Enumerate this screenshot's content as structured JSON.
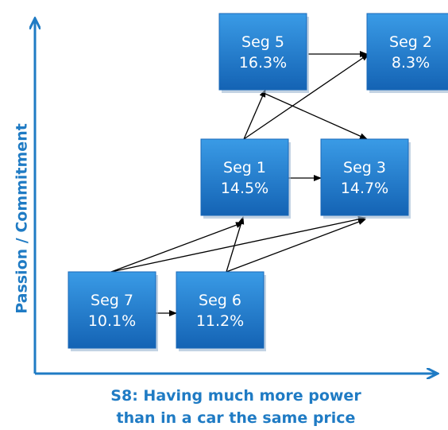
{
  "axes": {
    "y_label": "Passion / Commitment",
    "x_label": [
      "S8: Having much more power",
      "than in a car the same price"
    ]
  },
  "nodes": [
    {
      "label": "Seg 5",
      "share": "16.3%"
    },
    {
      "label": "Seg 2",
      "share": "8.3%"
    },
    {
      "label": "Seg 1",
      "share": "14.5%"
    },
    {
      "label": "Seg 3",
      "share": "14.7%"
    },
    {
      "label": "Seg 7",
      "share": "10.1%"
    },
    {
      "label": "Seg 6",
      "share": "11.2%"
    }
  ]
}
